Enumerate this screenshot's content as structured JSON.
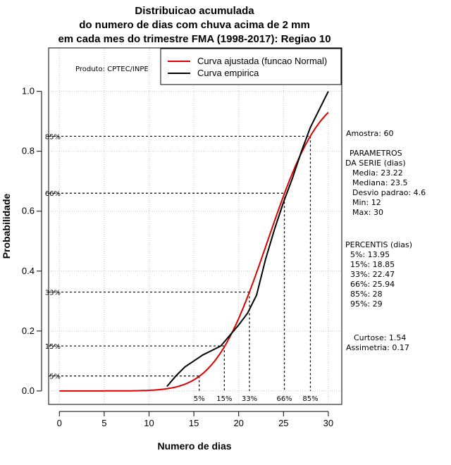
{
  "chart_data": {
    "type": "line",
    "title_lines": [
      "Distribuicao acumulada",
      "do numero de dias com chuva acima de 2 mm",
      "em cada mes do trimestre FMA (1998-2017): Regiao 10"
    ],
    "xlabel": "Numero de dias",
    "ylabel": "Probabilidade",
    "xlim": [
      -1.2,
      31.5
    ],
    "ylim": [
      -0.045,
      1.145
    ],
    "x_ticks": [
      0,
      5,
      10,
      15,
      20,
      25,
      30
    ],
    "y_ticks": [
      "0.0",
      "0.2",
      "0.4",
      "0.6",
      "0.8",
      "1.0"
    ],
    "grid": true,
    "legend": {
      "position": "top-right",
      "entries": [
        {
          "label": "Curva ajustada (funcao Normal)",
          "color": "#dd0000"
        },
        {
          "label": "Curva empirica",
          "color": "#000000"
        }
      ]
    },
    "product_label": "Produto: CPTEC/INPE",
    "series": [
      {
        "name": "Curva ajustada (funcao Normal)",
        "color": "#dd0000",
        "distribution": "normal",
        "mean": 23.22,
        "sd": 4.6,
        "x_range": [
          0,
          30
        ]
      },
      {
        "name": "Curva empirica",
        "color": "#000000",
        "x": [
          12,
          13,
          14,
          15,
          16,
          17,
          18,
          19,
          20,
          21,
          22,
          23,
          24,
          25,
          26,
          27,
          28,
          29,
          30
        ],
        "y": [
          0.015,
          0.05,
          0.08,
          0.1,
          0.12,
          0.135,
          0.15,
          0.185,
          0.22,
          0.26,
          0.32,
          0.44,
          0.54,
          0.63,
          0.71,
          0.8,
          0.88,
          0.94,
          1.0
        ]
      }
    ],
    "percentile_lines": [
      {
        "label": "5%",
        "p": 0.05,
        "x": 15.6
      },
      {
        "label": "15%",
        "p": 0.15,
        "x": 18.4
      },
      {
        "label": "33%",
        "p": 0.33,
        "x": 21.2
      },
      {
        "label": "66%",
        "p": 0.66,
        "x": 25.1
      },
      {
        "label": "85%",
        "p": 0.85,
        "x": 28.0
      }
    ]
  },
  "stats_panel": {
    "sample": "Amostra: 60",
    "params_header_1": "PARAMETROS",
    "params_header_2": "DA SERIE (dias)",
    "mean": "Media: 23.22",
    "median": "Mediana: 23.5",
    "sd": "Desvio padrao: 4.6",
    "min": "Min: 12",
    "max": "Max: 30",
    "percentis_header": "PERCENTIS (dias)",
    "p5": "5%: 13.95",
    "p15": "15%: 18.85",
    "p33": "33%: 22.47",
    "p66": "66%: 25.94",
    "p85": "85%: 28",
    "p95": "95%: 29",
    "kurtosis": "Curtose: 1.54",
    "skewness": "Assimetria: 0.17"
  }
}
